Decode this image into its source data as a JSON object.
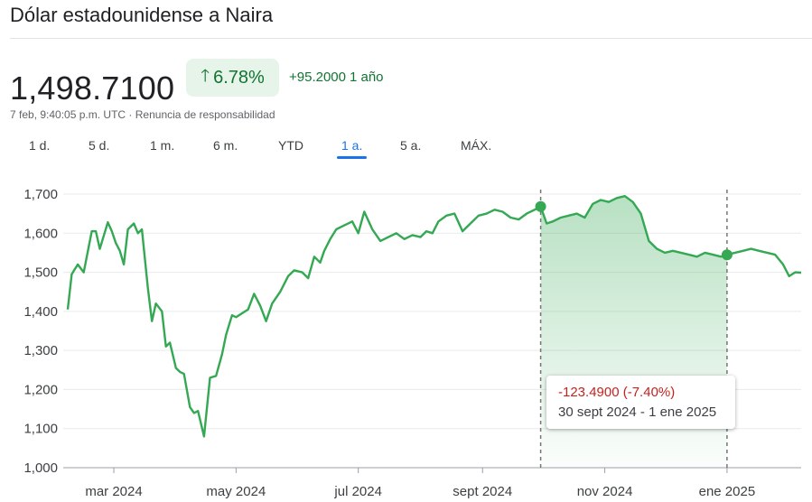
{
  "header": {
    "title": "Dólar estadounidense a Naira",
    "price": "1,498.7100",
    "percent_change": "6.78%",
    "percent_arrow_icon": "arrow-up-icon",
    "abs_change": "+95.2000",
    "change_period": "1 año",
    "timestamp": "7 feb, 9:40:05 p.m. UTC",
    "separator": "·",
    "disclaimer": "Renuncia de responsabilidad"
  },
  "tabs": [
    {
      "label": "1 d."
    },
    {
      "label": "5 d."
    },
    {
      "label": "1 m."
    },
    {
      "label": "6 m."
    },
    {
      "label": "YTD"
    },
    {
      "label": "1 a.",
      "active": true
    },
    {
      "label": "5 a."
    },
    {
      "label": "MÁX."
    }
  ],
  "tooltip": {
    "change": "-123.4900 (-7.40%)",
    "range": "30 sept 2024 - 1 ene 2025"
  },
  "colors": {
    "line": "#34a853",
    "positive": "#137333",
    "negative": "#c5221f",
    "active_tab": "#1a73e8"
  },
  "chart_data": {
    "type": "line",
    "ylim": [
      1000,
      1700
    ],
    "yticks": [
      "1,000",
      "1,100",
      "1,200",
      "1,300",
      "1,400",
      "1,500",
      "1,600",
      "1,700"
    ],
    "ytick_values": [
      1000,
      1100,
      1200,
      1300,
      1400,
      1500,
      1600,
      1700
    ],
    "xticks": [
      {
        "label": "mar 2024",
        "date": "2024-03-01"
      },
      {
        "label": "may 2024",
        "date": "2024-05-01"
      },
      {
        "label": "jul 2024",
        "date": "2024-07-01"
      },
      {
        "label": "sept 2024",
        "date": "2024-09-01"
      },
      {
        "label": "nov 2024",
        "date": "2024-11-01"
      },
      {
        "label": "ene 2025",
        "date": "2025-01-01"
      }
    ],
    "xlim": [
      "2024-02-07",
      "2025-02-07"
    ],
    "grid": true,
    "selection": {
      "start": "2024-09-30",
      "end": "2025-01-01",
      "start_value": 1668.2,
      "end_value": 1544.7
    },
    "series": [
      {
        "x": [
          "2024-02-07",
          "2024-02-09",
          "2024-02-12",
          "2024-02-15",
          "2024-02-19",
          "2024-02-21",
          "2024-02-23",
          "2024-02-27",
          "2024-02-29",
          "2024-03-02",
          "2024-03-04",
          "2024-03-06",
          "2024-03-08",
          "2024-03-11",
          "2024-03-13",
          "2024-03-15",
          "2024-03-18",
          "2024-03-20",
          "2024-03-22",
          "2024-03-25",
          "2024-03-27",
          "2024-03-29",
          "2024-04-01",
          "2024-04-03",
          "2024-04-05",
          "2024-04-08",
          "2024-04-10",
          "2024-04-12",
          "2024-04-15",
          "2024-04-18",
          "2024-04-21",
          "2024-04-24",
          "2024-04-26",
          "2024-04-29",
          "2024-05-01",
          "2024-05-04",
          "2024-05-07",
          "2024-05-10",
          "2024-05-13",
          "2024-05-16",
          "2024-05-19",
          "2024-05-23",
          "2024-05-27",
          "2024-05-30",
          "2024-06-03",
          "2024-06-06",
          "2024-06-09",
          "2024-06-12",
          "2024-06-14",
          "2024-06-17",
          "2024-06-20",
          "2024-06-24",
          "2024-06-28",
          "2024-07-01",
          "2024-07-04",
          "2024-07-08",
          "2024-07-12",
          "2024-07-16",
          "2024-07-20",
          "2024-07-24",
          "2024-07-28",
          "2024-08-01",
          "2024-08-04",
          "2024-08-07",
          "2024-08-10",
          "2024-08-14",
          "2024-08-18",
          "2024-08-22",
          "2024-08-26",
          "2024-08-30",
          "2024-09-03",
          "2024-09-07",
          "2024-09-11",
          "2024-09-15",
          "2024-09-19",
          "2024-09-23",
          "2024-09-27",
          "2024-09-30",
          "2024-10-03",
          "2024-10-06",
          "2024-10-10",
          "2024-10-14",
          "2024-10-18",
          "2024-10-22",
          "2024-10-26",
          "2024-10-30",
          "2024-11-03",
          "2024-11-07",
          "2024-11-11",
          "2024-11-15",
          "2024-11-19",
          "2024-11-23",
          "2024-11-27",
          "2024-12-01",
          "2024-12-05",
          "2024-12-09",
          "2024-12-13",
          "2024-12-17",
          "2024-12-21",
          "2024-12-25",
          "2024-12-29",
          "2025-01-01",
          "2025-01-05",
          "2025-01-09",
          "2025-01-13",
          "2025-01-17",
          "2025-01-21",
          "2025-01-25",
          "2025-01-29",
          "2025-02-01",
          "2025-02-04",
          "2025-02-07"
        ],
        "values": [
          1405,
          1495,
          1520,
          1500,
          1605,
          1605,
          1560,
          1628,
          1605,
          1575,
          1555,
          1520,
          1610,
          1625,
          1600,
          1610,
          1460,
          1375,
          1420,
          1400,
          1310,
          1320,
          1255,
          1245,
          1240,
          1155,
          1140,
          1145,
          1080,
          1230,
          1235,
          1290,
          1340,
          1390,
          1385,
          1395,
          1405,
          1445,
          1415,
          1375,
          1420,
          1450,
          1490,
          1505,
          1500,
          1485,
          1540,
          1525,
          1555,
          1585,
          1610,
          1620,
          1630,
          1600,
          1655,
          1610,
          1580,
          1590,
          1600,
          1585,
          1595,
          1590,
          1605,
          1600,
          1630,
          1645,
          1650,
          1605,
          1625,
          1645,
          1650,
          1660,
          1655,
          1640,
          1635,
          1650,
          1660,
          1668,
          1625,
          1630,
          1640,
          1645,
          1650,
          1640,
          1675,
          1685,
          1680,
          1690,
          1695,
          1680,
          1650,
          1580,
          1560,
          1550,
          1555,
          1550,
          1545,
          1540,
          1550,
          1545,
          1540,
          1545,
          1550,
          1555,
          1560,
          1555,
          1550,
          1545,
          1520,
          1490,
          1500,
          1499
        ]
      }
    ]
  }
}
